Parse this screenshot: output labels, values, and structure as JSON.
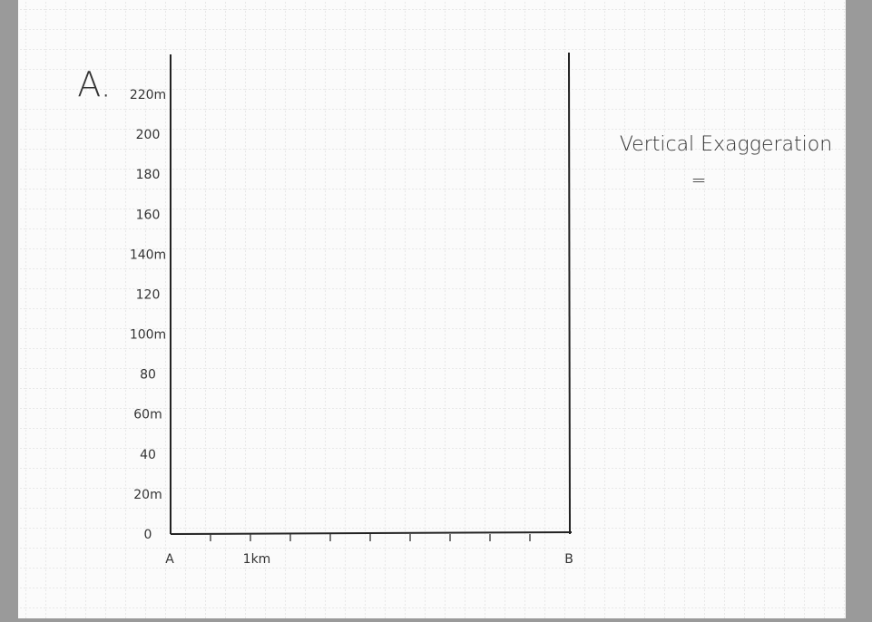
{
  "worksheet": {
    "label": "A.",
    "y_labels": [
      "220m",
      "200",
      "180",
      "160",
      "140m",
      "120",
      "100m",
      "80",
      "60m",
      "40",
      "20m",
      "0"
    ],
    "x_labels": [
      "A",
      "1km",
      "B"
    ],
    "note": {
      "title": "Vertical Exaggeration",
      "equals": "="
    }
  }
}
